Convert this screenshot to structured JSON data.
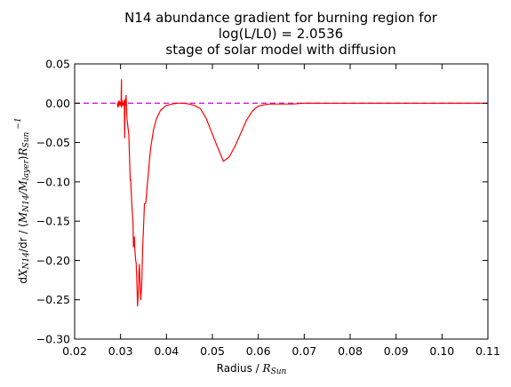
{
  "chart_data": {
    "type": "line",
    "title_lines": [
      "N14 abundance gradient for burning region for",
      "log(L/L0) = 2.0536",
      "stage of solar model with diffusion"
    ],
    "xlabel": {
      "prefix": "Radius / ",
      "math": "R",
      "sub": "Sun"
    },
    "ylabel": {
      "d": "d",
      "X": "X",
      "X_sub": "N14",
      "mid": "/dr / (",
      "M1": "M",
      "M1_sub": "N14",
      "slash": "/",
      "M2": "M",
      "M2_sub": "layer",
      "close": ")",
      "R": "R",
      "R_sub": "Sun",
      "sup": "−1"
    },
    "xlim": [
      0.02,
      0.11
    ],
    "ylim": [
      -0.3,
      0.05
    ],
    "xticks": [
      0.02,
      0.03,
      0.04,
      0.05,
      0.06,
      0.07,
      0.08,
      0.09,
      0.1,
      0.11
    ],
    "xtick_labels": [
      "0.02",
      "0.03",
      "0.04",
      "0.05",
      "0.06",
      "0.07",
      "0.08",
      "0.09",
      "0.10",
      "0.11"
    ],
    "yticks": [
      0.05,
      0.0,
      -0.05,
      -0.1,
      -0.15,
      -0.2,
      -0.25,
      -0.3
    ],
    "ytick_labels": [
      "0.05",
      "0.00",
      "−0.05",
      "−0.10",
      "−0.15",
      "−0.20",
      "−0.25",
      "−0.30"
    ],
    "reference_line": {
      "y": 0.0,
      "style": "dashed",
      "color": "#cc00cc"
    },
    "series": [
      {
        "color": "#ff0000",
        "x": [
          0.0293,
          0.0294,
          0.0295,
          0.0296,
          0.0297,
          0.0298,
          0.0299,
          0.03,
          0.0301,
          0.0302,
          0.0302,
          0.0303,
          0.0304,
          0.0305,
          0.0306,
          0.0307,
          0.0308,
          0.0309,
          0.031,
          0.0311,
          0.0312,
          0.0314,
          0.0318,
          0.0321,
          0.0322,
          0.0325,
          0.0327,
          0.0328,
          0.033,
          0.0331,
          0.0333,
          0.0334,
          0.0335,
          0.0337,
          0.0339,
          0.034,
          0.0341,
          0.0342,
          0.0343,
          0.0344,
          0.0346,
          0.0347,
          0.0348,
          0.035,
          0.0352,
          0.0353,
          0.0355,
          0.0358,
          0.0361,
          0.0363,
          0.0366,
          0.0372,
          0.0378,
          0.0387,
          0.0399,
          0.0412,
          0.0425,
          0.0437,
          0.0449,
          0.0462,
          0.0474,
          0.0487,
          0.0499,
          0.0512,
          0.0524,
          0.0537,
          0.0549,
          0.0562,
          0.0574,
          0.0587,
          0.0599,
          0.0612,
          0.0624,
          0.0637,
          0.065,
          0.0662,
          0.0675,
          0.07,
          0.075,
          0.08,
          0.085,
          0.09,
          0.095,
          0.1,
          0.105,
          0.109
        ],
        "y": [
          0.0,
          -0.005,
          0.002,
          -0.004,
          0.003,
          -0.002,
          0.001,
          -0.003,
          0.0,
          0.03,
          -0.005,
          0.004,
          0.002,
          -0.003,
          0.0,
          -0.002,
          0.003,
          -0.044,
          0.005,
          -0.002,
          0.01,
          -0.02,
          -0.04,
          -0.098,
          -0.097,
          -0.135,
          -0.15,
          -0.183,
          -0.17,
          -0.185,
          -0.2,
          -0.203,
          -0.218,
          -0.258,
          -0.237,
          -0.215,
          -0.205,
          -0.222,
          -0.238,
          -0.25,
          -0.232,
          -0.21,
          -0.185,
          -0.158,
          -0.128,
          -0.128,
          -0.127,
          -0.105,
          -0.087,
          -0.072,
          -0.055,
          -0.033,
          -0.02,
          -0.009,
          -0.003,
          -0.001,
          0.0,
          0.0,
          -0.001,
          -0.003,
          -0.007,
          -0.02,
          -0.038,
          -0.057,
          -0.074,
          -0.068,
          -0.055,
          -0.038,
          -0.022,
          -0.01,
          -0.004,
          -0.002,
          -0.001,
          -0.001,
          -0.001,
          -0.001,
          -0.001,
          0.0,
          0.0,
          0.0,
          0.0,
          0.0,
          0.0,
          0.0,
          0.0,
          0.0
        ]
      }
    ]
  }
}
